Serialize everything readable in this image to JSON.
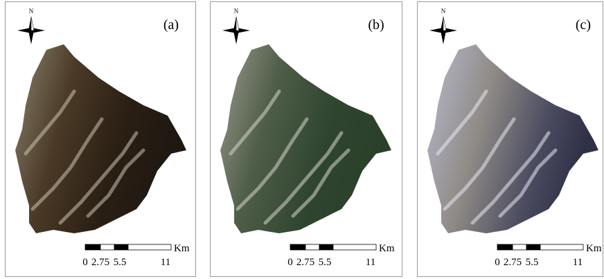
{
  "panels": [
    {
      "label": "(a)",
      "north": "N",
      "scale": [
        "0",
        "2.75",
        "5.5",
        "11"
      ],
      "unit": "Km"
    },
    {
      "label": "(b)",
      "north": "N",
      "scale": [
        "0",
        "2.75",
        "5.5",
        "11"
      ],
      "unit": "Km"
    },
    {
      "label": "(c)",
      "north": "N",
      "scale": [
        "0",
        "2.75",
        "5.5",
        "11"
      ],
      "unit": "Km"
    }
  ]
}
